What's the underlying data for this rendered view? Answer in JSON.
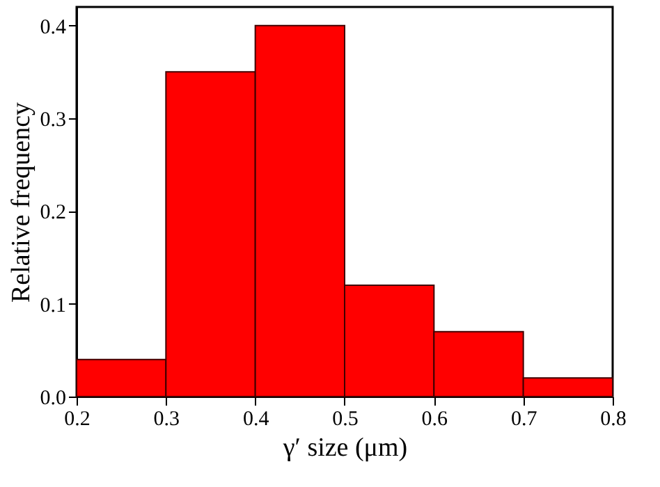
{
  "chart_data": {
    "type": "histogram",
    "xlabel": "γ′ size (μm)",
    "ylabel": "Relative frequency",
    "bins": [
      0.2,
      0.3,
      0.4,
      0.5,
      0.6,
      0.7,
      0.8
    ],
    "values": [
      0.04,
      0.35,
      0.4,
      0.12,
      0.07,
      0.02
    ],
    "color": "#ff0000",
    "xlim": [
      0.2,
      0.8
    ],
    "xticks": [
      0.2,
      0.3,
      0.4,
      0.5,
      0.6,
      0.7,
      0.8
    ],
    "ylim": [
      0,
      0.42
    ],
    "yticks": [
      {
        "value": 0,
        "label": "0.0"
      },
      0.1,
      0.2,
      0.3,
      0.4
    ],
    "grid": false
  }
}
